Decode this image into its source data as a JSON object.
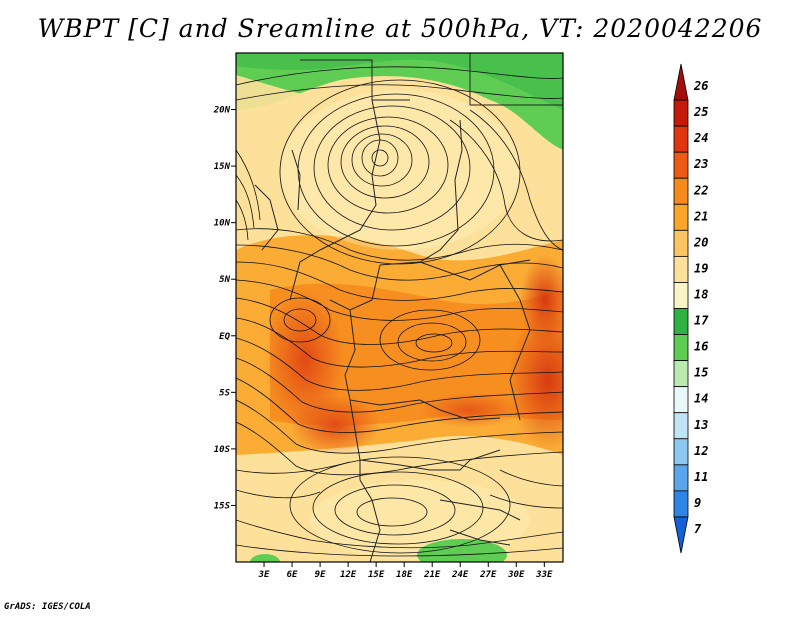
{
  "title": "WBPT [C] and Sreamline at 500hPa, VT: 2020042206",
  "footer": "GrADS: IGES/COLA",
  "map": {
    "lat_labels": [
      "20N",
      "15N",
      "10N",
      "5N",
      "EQ",
      "5S",
      "10S",
      "15S"
    ],
    "lat_values": [
      20,
      15,
      10,
      5,
      0,
      -5,
      -10,
      -15
    ],
    "lon_labels": [
      "3E",
      "6E",
      "9E",
      "12E",
      "15E",
      "18E",
      "21E",
      "24E",
      "27E",
      "30E",
      "33E"
    ],
    "lon_values": [
      3,
      6,
      9,
      12,
      15,
      18,
      21,
      24,
      27,
      30,
      33
    ],
    "lon_range": [
      0,
      35
    ],
    "lat_range": [
      -20,
      25
    ]
  },
  "colorbar": {
    "labels": [
      "26",
      "25",
      "24",
      "23",
      "22",
      "21",
      "20",
      "19",
      "18",
      "17",
      "16",
      "15",
      "14",
      "13",
      "12",
      "11",
      "9",
      "7"
    ],
    "colors": [
      "#a50d0d",
      "#c51a0a",
      "#e0350f",
      "#ed5a14",
      "#f68a1c",
      "#f9a62a",
      "#fbc561",
      "#fde19a",
      "#fdf4c5",
      "#2eb240",
      "#5fcd54",
      "#b9ebb0",
      "#e8f8f8",
      "#c1e3f6",
      "#8dc8f0",
      "#5ba6eb",
      "#2f85e3",
      "#1460d8"
    ]
  }
}
